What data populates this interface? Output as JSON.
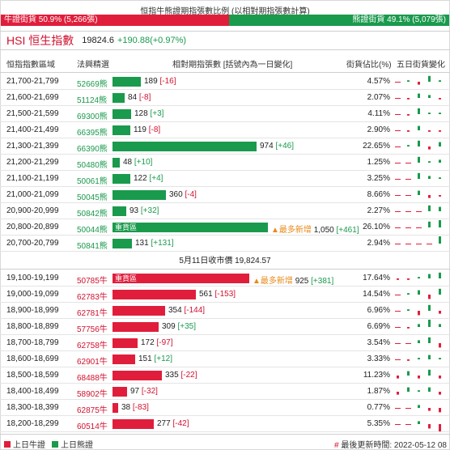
{
  "title": "恒指牛熊證期指張數比例 (以相對期指張數計算)",
  "ratio": {
    "bull_label": "牛證街貨 50.9% (5,266張)",
    "bear_label": "熊證街貨 49.1% (5,079張)",
    "bull_fraction": 0.509,
    "bull_color": "#e01e3c",
    "bear_color": "#1a9a4d"
  },
  "hsi": {
    "name": "HSI 恒生指數",
    "value": "19824.6",
    "change": "+190.88(+0.97%)"
  },
  "headers": {
    "range": "恒指指數區域",
    "code": "法興精選",
    "contracts": "相對期指張數 [括號內為一日變化]",
    "share": "街貨佔比(%)",
    "trend": "五日街貨變化"
  },
  "bear_rows": [
    {
      "range": "21,700-21,799",
      "code": "52669熊",
      "count": "189",
      "change": "[-16]",
      "share": "4.57%",
      "value": 189,
      "heavy": "",
      "newmax": "",
      "spark": [
        0,
        1,
        -2,
        4,
        1
      ]
    },
    {
      "range": "21,600-21,699",
      "code": "51124熊",
      "count": "84",
      "change": "[-8]",
      "share": "2.07%",
      "value": 84,
      "heavy": "",
      "newmax": "",
      "spark": [
        0,
        -1,
        3,
        2,
        -1
      ]
    },
    {
      "range": "21,500-21,599",
      "code": "69300熊",
      "count": "128",
      "change": "[+3]",
      "share": "4.11%",
      "value": 128,
      "heavy": "",
      "newmax": "",
      "spark": [
        0,
        -1,
        4,
        1,
        1
      ]
    },
    {
      "range": "21,400-21,499",
      "code": "66395熊",
      "count": "119",
      "change": "[-8]",
      "share": "2.90%",
      "value": 119,
      "heavy": "",
      "newmax": "",
      "spark": [
        0,
        -1,
        3,
        -1,
        -1
      ]
    },
    {
      "range": "21,300-21,399",
      "code": "66390熊",
      "count": "974",
      "change": "[+46]",
      "share": "22.65%",
      "value": 974,
      "heavy": "",
      "newmax": "",
      "spark": [
        0,
        1,
        4,
        -2,
        3
      ]
    },
    {
      "range": "21,200-21,299",
      "code": "50480熊",
      "count": "48",
      "change": "[+10]",
      "share": "1.25%",
      "value": 48,
      "heavy": "",
      "newmax": "",
      "spark": [
        0,
        0,
        4,
        1,
        2
      ]
    },
    {
      "range": "21,100-21,199",
      "code": "50061熊",
      "count": "122",
      "change": "[+4]",
      "share": "3.25%",
      "value": 122,
      "heavy": "",
      "newmax": "",
      "spark": [
        0,
        0,
        4,
        2,
        1
      ]
    },
    {
      "range": "21,000-21,099",
      "code": "50045熊",
      "count": "360",
      "change": "[-4]",
      "share": "8.66%",
      "value": 360,
      "heavy": "",
      "newmax": "",
      "spark": [
        0,
        0,
        3,
        -2,
        -1
      ]
    },
    {
      "range": "20,900-20,999",
      "code": "50842熊",
      "count": "93",
      "change": "[+32]",
      "share": "2.27%",
      "value": 93,
      "heavy": "",
      "newmax": "",
      "spark": [
        0,
        0,
        0,
        4,
        3
      ]
    },
    {
      "range": "20,800-20,899",
      "code": "50044熊",
      "count": "1,050",
      "change": "[+461]",
      "share": "26.10%",
      "value": 1050,
      "heavy": "重貨區",
      "newmax": "▲最多新增",
      "spark": [
        0,
        0,
        0,
        4,
        5
      ]
    },
    {
      "range": "20,700-20,799",
      "code": "50841熊",
      "count": "131",
      "change": "[+131]",
      "share": "2.94%",
      "value": 131,
      "heavy": "",
      "newmax": "",
      "spark": [
        0,
        0,
        0,
        0,
        5
      ]
    }
  ],
  "close_text": "5月11日收市價 19,824.57",
  "bull_rows": [
    {
      "range": "19,100-19,199",
      "code": "50785牛",
      "count": "925",
      "change": "[+381]",
      "share": "17.64%",
      "value": 925,
      "heavy": "重貨區",
      "newmax": "▲最多新增",
      "spark": [
        -1,
        -1,
        1,
        3,
        4
      ]
    },
    {
      "range": "19,000-19,099",
      "code": "62783牛",
      "count": "561",
      "change": "[-153]",
      "share": "14.54%",
      "value": 561,
      "heavy": "",
      "newmax": "",
      "spark": [
        0,
        1,
        3,
        -3,
        4
      ]
    },
    {
      "range": "18,900-18,999",
      "code": "62781牛",
      "count": "354",
      "change": "[-144]",
      "share": "6.96%",
      "value": 354,
      "heavy": "",
      "newmax": "",
      "spark": [
        0,
        1,
        -3,
        4,
        -2
      ]
    },
    {
      "range": "18,800-18,899",
      "code": "57756牛",
      "count": "309",
      "change": "[+35]",
      "share": "6.69%",
      "value": 309,
      "heavy": "",
      "newmax": "",
      "spark": [
        0,
        -1,
        2,
        5,
        2
      ]
    },
    {
      "range": "18,700-18,799",
      "code": "62758牛",
      "count": "172",
      "change": "[-97]",
      "share": "3.54%",
      "value": 172,
      "heavy": "",
      "newmax": "",
      "spark": [
        0,
        0,
        2,
        4,
        -3
      ]
    },
    {
      "range": "18,600-18,699",
      "code": "62901牛",
      "count": "151",
      "change": "[+12]",
      "share": "3.33%",
      "value": 151,
      "heavy": "",
      "newmax": "",
      "spark": [
        0,
        -1,
        1,
        3,
        1
      ]
    },
    {
      "range": "18,500-18,599",
      "code": "68488牛",
      "count": "335",
      "change": "[-22]",
      "share": "11.23%",
      "value": 335,
      "heavy": "",
      "newmax": "",
      "spark": [
        -2,
        3,
        -2,
        4,
        -2
      ]
    },
    {
      "range": "18,400-18,499",
      "code": "58902牛",
      "count": "97",
      "change": "[-32]",
      "share": "1.87%",
      "value": 97,
      "heavy": "",
      "newmax": "",
      "spark": [
        -2,
        3,
        1,
        3,
        -2
      ]
    },
    {
      "range": "18,300-18,399",
      "code": "62875牛",
      "count": "38",
      "change": "[-83]",
      "share": "0.77%",
      "value": 38,
      "heavy": "",
      "newmax": "",
      "spark": [
        0,
        0,
        2,
        -2,
        -3
      ]
    },
    {
      "range": "18,200-18,299",
      "code": "60514牛",
      "count": "277",
      "change": "[-42]",
      "share": "5.35%",
      "value": 277,
      "heavy": "",
      "newmax": "",
      "spark": [
        0,
        0,
        2,
        -3,
        -5
      ]
    }
  ],
  "footer": {
    "legend_bull": "上日牛證",
    "legend_bear": "上日熊證",
    "update_label": "最後更新時間: 2022-05-12 08",
    "hash": "#"
  }
}
